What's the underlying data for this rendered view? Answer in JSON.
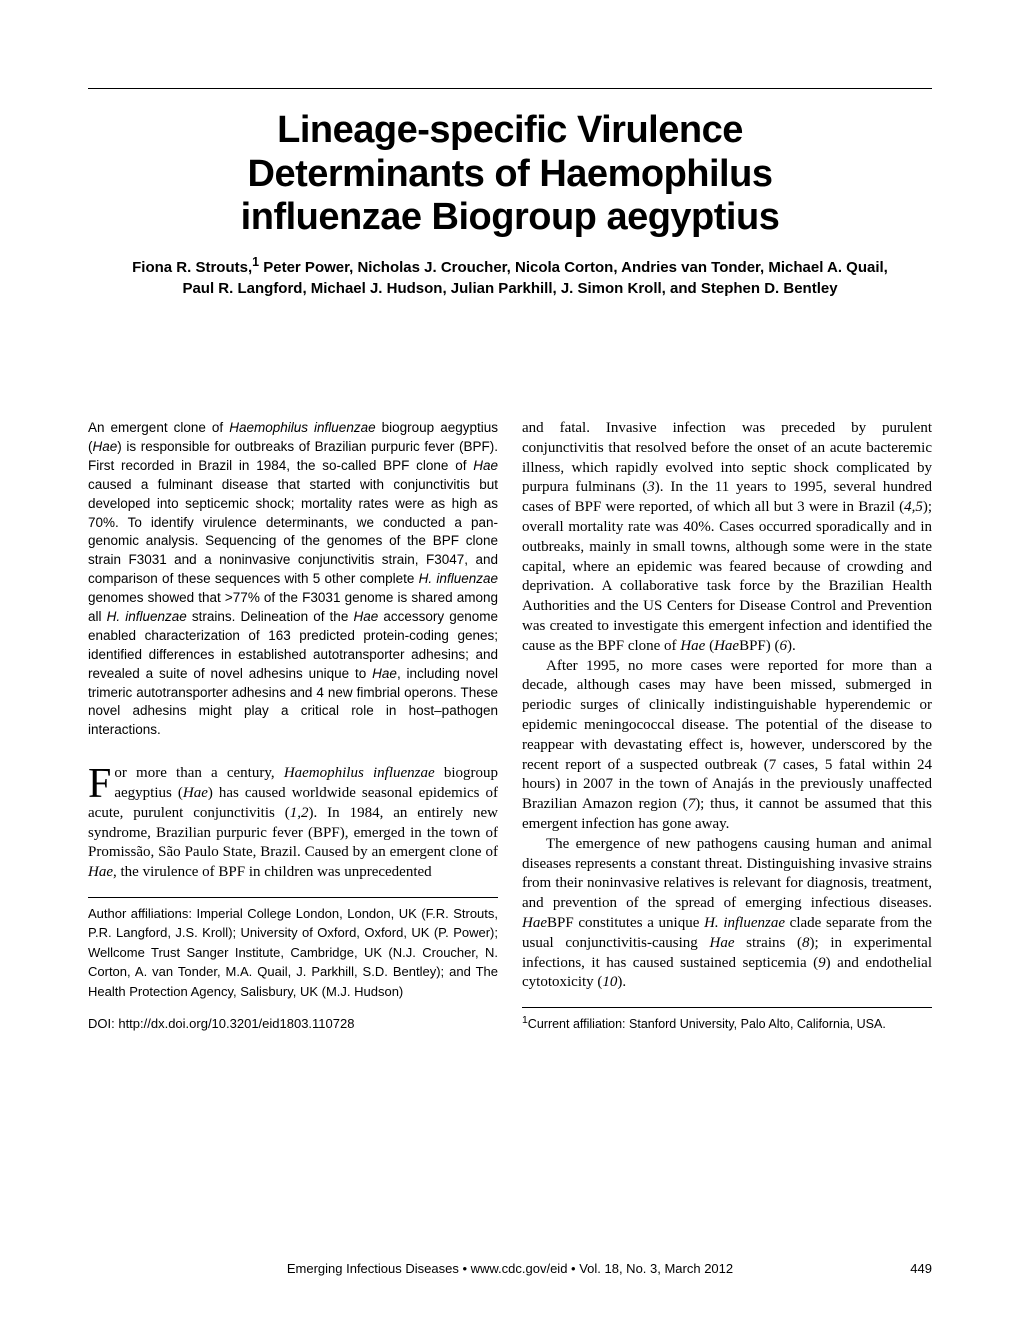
{
  "title_line1": "Lineage-specific Virulence",
  "title_line2": "Determinants of Haemophilus",
  "title_line3": "influenzae Biogroup aegyptius",
  "authors_html": "Fiona R. Strouts,<sup>1</sup> Peter Power, Nicholas J. Croucher, Nicola Corton, Andries van Tonder, Michael A. Quail, Paul R. Langford, Michael J. Hudson, Julian Parkhill, J. Simon Kroll, and Stephen D. Bentley",
  "abstract_html": "An emergent clone of <em>Haemophilus influenzae</em> biogroup aegyptius (<em>Hae</em>) is responsible for outbreaks of Brazilian purpuric fever (BPF). First recorded in Brazil in 1984, the so-called BPF clone of <em>Hae</em> caused a fulminant disease that started with conjunctivitis but developed into septicemic shock; mortality rates were as high as 70%. To identify virulence determinants, we conducted a pan-genomic analysis. Sequencing of the genomes of the BPF clone strain F3031 and a noninvasive conjunctivitis strain, F3047, and comparison of these sequences with 5 other complete <em>H. influenzae</em> genomes showed that >77% of the F3031 genome is shared among all <em>H. influenzae</em> strains. Delineation of the <em>Hae</em> accessory genome enabled characterization of 163 predicted protein-coding genes; identified differences in established autotransporter adhesins; and revealed a suite of novel adhesins unique to <em>Hae</em>, including novel trimeric autotransporter adhesins and 4 new fimbrial operons. These novel adhesins might play a critical role in host–pathogen interactions.",
  "left_body_html": "<span class=\"dropcap\">F</span>or more than a century, <em>Haemophilus influenzae</em> biogroup aegyptius (<em>Hae</em>) has caused worldwide seasonal epidemics of acute, purulent conjunctivitis (<em>1,2</em>). In 1984, an entirely new syndrome, Brazilian purpuric fever (BPF), emerged in the town of Promissão, São Paulo State, Brazil. Caused by an emergent clone of <em>Hae</em>, the virulence of BPF in children was unprecedented",
  "affil_text": "Author affiliations: Imperial College London, London, UK (F.R. Strouts, P.R. Langford, J.S. Kroll); University of Oxford, Oxford, UK (P. Power); Wellcome Trust Sanger Institute, Cambridge, UK (N.J. Croucher, N. Corton, A. van Tonder, M.A. Quail, J. Parkhill, S.D. Bentley); and The Health Protection Agency, Salisbury, UK (M.J. Hudson)",
  "doi_text": "DOI: http://dx.doi.org/10.3201/eid1803.110728",
  "right_p1_html": "and fatal. Invasive infection was preceded by purulent conjunctivitis that resolved before the onset of an acute bacteremic illness, which rapidly evolved into septic shock complicated by purpura fulminans (<em>3</em>). In the 11 years to 1995, several hundred cases of BPF were reported, of which all but 3 were in Brazil (<em>4,5</em>); overall mortality rate was 40%. Cases occurred sporadically and in outbreaks, mainly in small towns, although some were in the state capital, where an epidemic was feared because of crowding and deprivation. A collaborative task force by the Brazilian Health Authorities and the US Centers for Disease Control and Prevention was created to investigate this emergent infection and identified the cause as the BPF clone of <em>Hae</em> (<em>Hae</em>BPF) (<em>6</em>).",
  "right_p2_html": "After 1995, no more cases were reported for more than a decade, although cases may have been missed, submerged in periodic surges of clinically indistinguishable hyperendemic or epidemic meningococcal disease. The potential of the disease to reappear with devastating effect is, however, underscored by the recent report of a suspected outbreak (7 cases, 5 fatal within 24 hours) in 2007 in the town of Anajás in the previously unaffected Brazilian Amazon region (<em>7</em>); thus, it cannot be assumed that this emergent infection has gone away.",
  "right_p3_html": "The emergence of new pathogens causing human and animal diseases represents a constant threat. Distinguishing invasive strains from their noninvasive relatives is relevant for diagnosis, treatment, and prevention of the spread of emerging infectious diseases. <em>Hae</em>BPF constitutes a unique <em>H. influenzae</em> clade separate from the usual conjunctivitis-causing <em>Hae</em> strains (<em>8</em>); in experimental infections, it has caused sustained septicemia (<em>9</em>) and endothelial cytotoxicity (<em>10</em>).",
  "footnote_html": "<sup>1</sup>Current affiliation: Stanford University, Palo Alto, California, USA.",
  "footer_text": "Emerging Infectious Diseases • www.cdc.gov/eid • Vol. 18, No. 3, March 2012",
  "page_number": "449"
}
